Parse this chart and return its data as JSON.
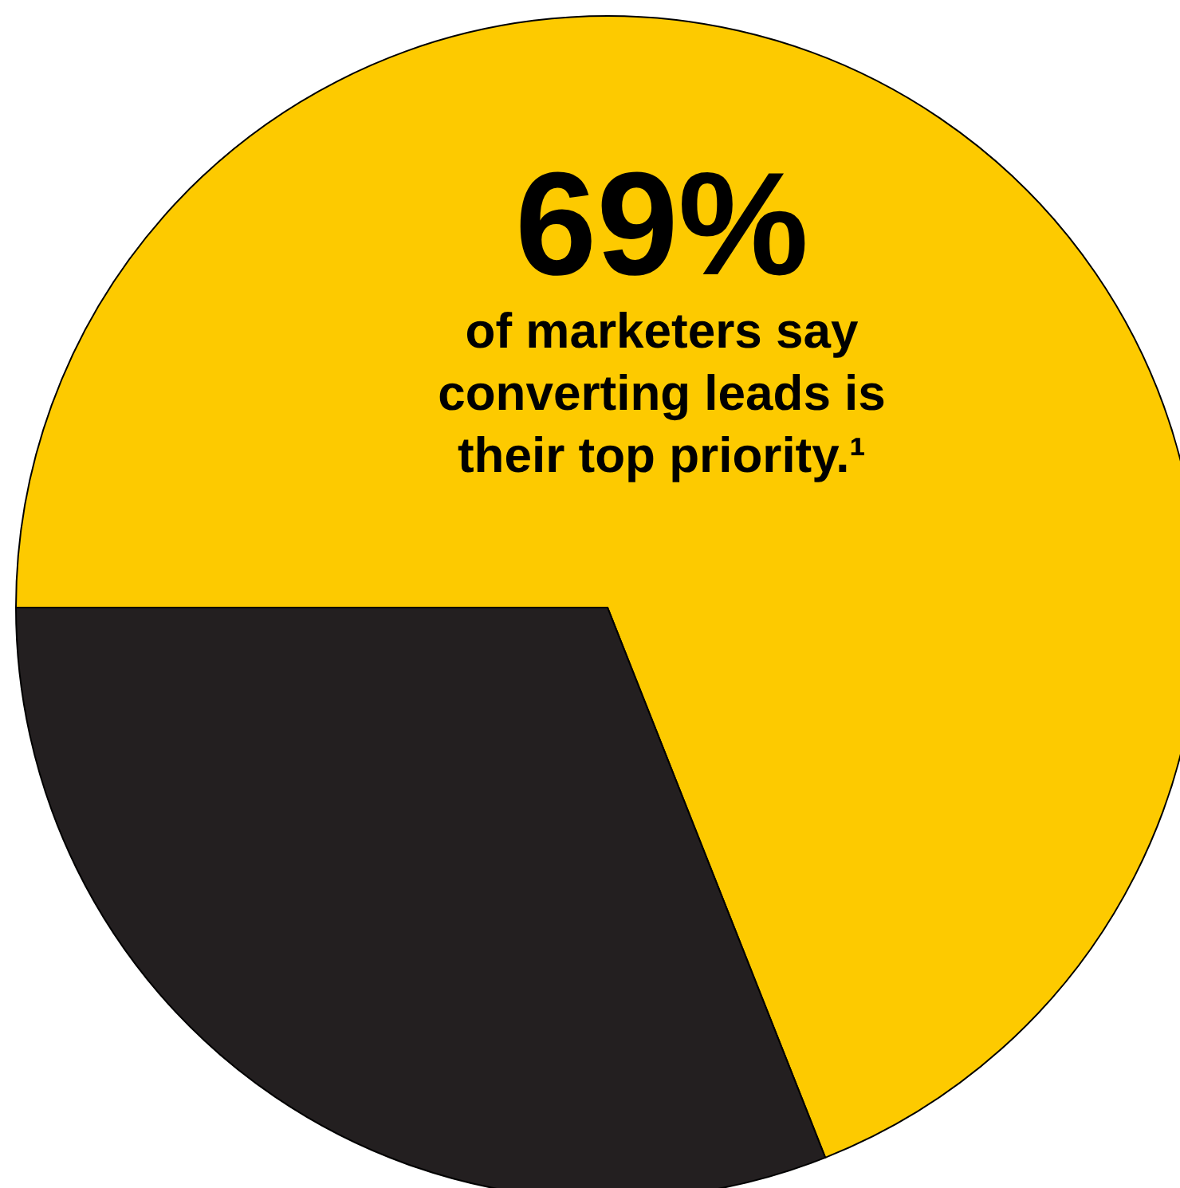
{
  "chart_data": {
    "type": "pie",
    "categories": [
      null,
      null
    ],
    "values": [
      69,
      31
    ],
    "colors": [
      "#fdca00",
      "#231f20"
    ],
    "annotations": [
      "69%",
      "of marketers say converting leads is their top priority.¹"
    ]
  }
}
